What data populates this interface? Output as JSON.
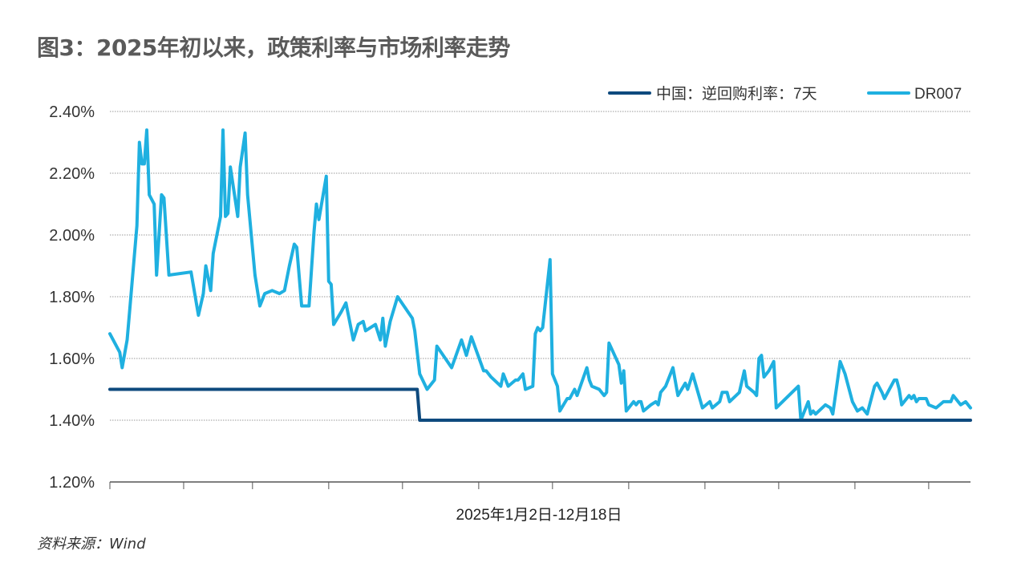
{
  "title": "图3：2025年初以来，政策利率与市场利率走势",
  "source": "资料来源：Wind",
  "chart_data": {
    "type": "line",
    "title": "图3：2025年初以来，政策利率与市场利率走势",
    "xlabel": "2025年1月2日-12月18日",
    "ylabel": "",
    "xlim": [
      "2025-01-02",
      "2025-12-18"
    ],
    "ylim": [
      1.2,
      2.4
    ],
    "yticks": [
      "1.20%",
      "1.40%",
      "1.60%",
      "1.80%",
      "2.00%",
      "2.20%",
      "2.40%"
    ],
    "grid": "horizontal dotted",
    "legend": "top-right",
    "series": [
      {
        "name": "中国：逆回购利率：7天",
        "color": "#0e4a7e",
        "step": true,
        "points": [
          [
            "2025-01-02",
            1.5
          ],
          [
            "2025-05-07",
            1.5
          ],
          [
            "2025-05-08",
            1.4
          ],
          [
            "2025-12-18",
            1.4
          ]
        ]
      },
      {
        "name": "DR007",
        "color": "#1fb0e0",
        "points": [
          [
            "2025-01-02",
            1.68
          ],
          [
            "2025-01-06",
            1.62
          ],
          [
            "2025-01-07",
            1.57
          ],
          [
            "2025-01-09",
            1.66
          ],
          [
            "2025-01-10",
            1.75
          ],
          [
            "2025-01-13",
            2.03
          ],
          [
            "2025-01-14",
            2.3
          ],
          [
            "2025-01-15",
            2.23
          ],
          [
            "2025-01-16",
            2.23
          ],
          [
            "2025-01-17",
            2.34
          ],
          [
            "2025-01-18",
            2.13
          ],
          [
            "2025-01-20",
            2.1
          ],
          [
            "2025-01-21",
            1.87
          ],
          [
            "2025-01-23",
            2.13
          ],
          [
            "2025-01-24",
            2.12
          ],
          [
            "2025-01-26",
            1.87
          ],
          [
            "2025-02-04",
            1.88
          ],
          [
            "2025-02-07",
            1.74
          ],
          [
            "2025-02-09",
            1.81
          ],
          [
            "2025-02-10",
            1.9
          ],
          [
            "2025-02-12",
            1.82
          ],
          [
            "2025-02-13",
            1.94
          ],
          [
            "2025-02-16",
            2.06
          ],
          [
            "2025-02-17",
            2.34
          ],
          [
            "2025-02-18",
            2.06
          ],
          [
            "2025-02-19",
            2.07
          ],
          [
            "2025-02-20",
            2.22
          ],
          [
            "2025-02-23",
            2.06
          ],
          [
            "2025-02-24",
            2.22
          ],
          [
            "2025-02-26",
            2.33
          ],
          [
            "2025-02-27",
            2.13
          ],
          [
            "2025-03-02",
            1.87
          ],
          [
            "2025-03-04",
            1.77
          ],
          [
            "2025-03-06",
            1.81
          ],
          [
            "2025-03-09",
            1.82
          ],
          [
            "2025-03-12",
            1.81
          ],
          [
            "2025-03-14",
            1.82
          ],
          [
            "2025-03-16",
            1.9
          ],
          [
            "2025-03-18",
            1.97
          ],
          [
            "2025-03-19",
            1.96
          ],
          [
            "2025-03-21",
            1.77
          ],
          [
            "2025-03-24",
            1.77
          ],
          [
            "2025-03-26",
            2.01
          ],
          [
            "2025-03-27",
            2.1
          ],
          [
            "2025-03-28",
            2.05
          ],
          [
            "2025-03-31",
            2.19
          ],
          [
            "2025-04-01",
            1.85
          ],
          [
            "2025-04-02",
            1.84
          ],
          [
            "2025-04-03",
            1.71
          ],
          [
            "2025-04-06",
            1.75
          ],
          [
            "2025-04-08",
            1.78
          ],
          [
            "2025-04-11",
            1.66
          ],
          [
            "2025-04-13",
            1.71
          ],
          [
            "2025-04-15",
            1.72
          ],
          [
            "2025-04-16",
            1.69
          ],
          [
            "2025-04-20",
            1.71
          ],
          [
            "2025-04-22",
            1.66
          ],
          [
            "2025-04-23",
            1.73
          ],
          [
            "2025-04-24",
            1.64
          ],
          [
            "2025-04-26",
            1.72
          ],
          [
            "2025-04-29",
            1.8
          ],
          [
            "2025-05-05",
            1.73
          ],
          [
            "2025-05-06",
            1.69
          ],
          [
            "2025-05-08",
            1.55
          ],
          [
            "2025-05-11",
            1.5
          ],
          [
            "2025-05-13",
            1.52
          ],
          [
            "2025-05-14",
            1.53
          ],
          [
            "2025-05-15",
            1.64
          ],
          [
            "2025-05-21",
            1.57
          ],
          [
            "2025-05-25",
            1.66
          ],
          [
            "2025-05-27",
            1.61
          ],
          [
            "2025-05-29",
            1.67
          ],
          [
            "2025-06-03",
            1.56
          ],
          [
            "2025-06-04",
            1.56
          ],
          [
            "2025-06-06",
            1.54
          ],
          [
            "2025-06-10",
            1.51
          ],
          [
            "2025-06-11",
            1.55
          ],
          [
            "2025-06-13",
            1.51
          ],
          [
            "2025-06-16",
            1.53
          ],
          [
            "2025-06-17",
            1.53
          ],
          [
            "2025-06-19",
            1.55
          ],
          [
            "2025-06-20",
            1.5
          ],
          [
            "2025-06-23",
            1.51
          ],
          [
            "2025-06-24",
            1.68
          ],
          [
            "2025-06-25",
            1.7
          ],
          [
            "2025-06-26",
            1.69
          ],
          [
            "2025-06-27",
            1.7
          ],
          [
            "2025-06-30",
            1.92
          ],
          [
            "2025-07-01",
            1.55
          ],
          [
            "2025-07-03",
            1.51
          ],
          [
            "2025-07-04",
            1.43
          ],
          [
            "2025-07-07",
            1.47
          ],
          [
            "2025-07-08",
            1.47
          ],
          [
            "2025-07-10",
            1.5
          ],
          [
            "2025-07-11",
            1.48
          ],
          [
            "2025-07-15",
            1.57
          ],
          [
            "2025-07-16",
            1.53
          ],
          [
            "2025-07-17",
            1.51
          ],
          [
            "2025-07-20",
            1.5
          ],
          [
            "2025-07-22",
            1.48
          ],
          [
            "2025-07-23",
            1.49
          ],
          [
            "2025-07-24",
            1.65
          ],
          [
            "2025-07-28",
            1.58
          ],
          [
            "2025-07-29",
            1.52
          ],
          [
            "2025-07-30",
            1.56
          ],
          [
            "2025-07-31",
            1.43
          ],
          [
            "2025-08-03",
            1.46
          ],
          [
            "2025-08-04",
            1.45
          ],
          [
            "2025-08-05",
            1.46
          ],
          [
            "2025-08-06",
            1.46
          ],
          [
            "2025-08-07",
            1.43
          ],
          [
            "2025-08-10",
            1.45
          ],
          [
            "2025-08-12",
            1.46
          ],
          [
            "2025-08-13",
            1.45
          ],
          [
            "2025-08-14",
            1.49
          ],
          [
            "2025-08-16",
            1.51
          ],
          [
            "2025-08-19",
            1.57
          ],
          [
            "2025-08-21",
            1.48
          ],
          [
            "2025-08-24",
            1.52
          ],
          [
            "2025-08-25",
            1.5
          ],
          [
            "2025-08-27",
            1.55
          ],
          [
            "2025-08-31",
            1.44
          ],
          [
            "2025-09-03",
            1.46
          ],
          [
            "2025-09-04",
            1.44
          ],
          [
            "2025-09-07",
            1.46
          ],
          [
            "2025-09-08",
            1.49
          ],
          [
            "2025-09-10",
            1.49
          ],
          [
            "2025-09-11",
            1.46
          ],
          [
            "2025-09-15",
            1.49
          ],
          [
            "2025-09-17",
            1.56
          ],
          [
            "2025-09-18",
            1.51
          ],
          [
            "2025-09-21",
            1.49
          ],
          [
            "2025-09-22",
            1.48
          ],
          [
            "2025-09-23",
            1.6
          ],
          [
            "2025-09-24",
            1.61
          ],
          [
            "2025-09-25",
            1.54
          ],
          [
            "2025-09-27",
            1.56
          ],
          [
            "2025-09-29",
            1.59
          ],
          [
            "2025-09-30",
            1.44
          ],
          [
            "2025-10-09",
            1.51
          ],
          [
            "2025-10-10",
            1.4
          ],
          [
            "2025-10-13",
            1.46
          ],
          [
            "2025-10-14",
            1.42
          ],
          [
            "2025-10-15",
            1.43
          ],
          [
            "2025-10-16",
            1.42
          ],
          [
            "2025-10-20",
            1.45
          ],
          [
            "2025-10-22",
            1.44
          ],
          [
            "2025-10-23",
            1.42
          ],
          [
            "2025-10-26",
            1.59
          ],
          [
            "2025-10-28",
            1.55
          ],
          [
            "2025-10-31",
            1.46
          ],
          [
            "2025-11-02",
            1.43
          ],
          [
            "2025-11-04",
            1.44
          ],
          [
            "2025-11-06",
            1.42
          ],
          [
            "2025-11-09",
            1.51
          ],
          [
            "2025-11-10",
            1.52
          ],
          [
            "2025-11-12",
            1.49
          ],
          [
            "2025-11-13",
            1.47
          ],
          [
            "2025-11-17",
            1.53
          ],
          [
            "2025-11-18",
            1.53
          ],
          [
            "2025-11-19",
            1.5
          ],
          [
            "2025-11-20",
            1.45
          ],
          [
            "2025-11-23",
            1.48
          ],
          [
            "2025-11-24",
            1.47
          ],
          [
            "2025-11-25",
            1.48
          ],
          [
            "2025-11-26",
            1.46
          ],
          [
            "2025-11-27",
            1.47
          ],
          [
            "2025-11-30",
            1.47
          ],
          [
            "2025-12-01",
            1.45
          ],
          [
            "2025-12-04",
            1.44
          ],
          [
            "2025-12-07",
            1.46
          ],
          [
            "2025-12-10",
            1.46
          ],
          [
            "2025-12-11",
            1.48
          ],
          [
            "2025-12-14",
            1.45
          ],
          [
            "2025-12-16",
            1.46
          ],
          [
            "2025-12-18",
            1.44
          ]
        ]
      }
    ]
  }
}
